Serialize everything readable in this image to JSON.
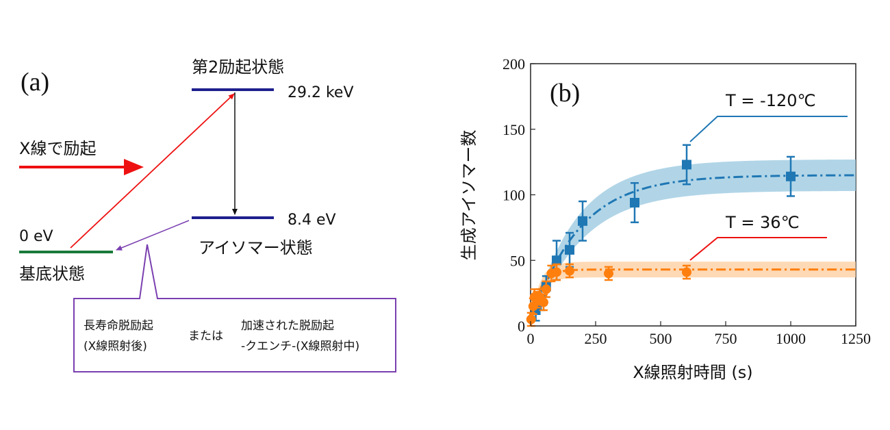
{
  "panel_a": {
    "label": "(a)",
    "second_excited_label": "第2励起状態",
    "second_excited_energy": "29.2 keV",
    "isomer_energy": "8.4 eV",
    "isomer_label": "アイソマー状態",
    "ground_energy": "0 eV",
    "ground_label": "基底状態",
    "xray_excitation_label": "X線で励起",
    "callout": {
      "left_line1": "長寿命脱励起",
      "left_line2": "(X線照射後)",
      "middle": "または",
      "right_line1": "加速された脱励起",
      "right_line2": "-クエンチ-(X線照射中)"
    },
    "colors": {
      "level_line": "#1f1f8f",
      "ground_line": "#1a7a3a",
      "xray_arrow": "#ee1111",
      "decay_arrow": "#7a3fb0",
      "callout_border": "#7a3fb0"
    }
  },
  "chart_data": {
    "type": "scatter",
    "panel_label": "(b)",
    "xlabel": "X線照射時間 (s)",
    "ylabel": "生成アイソマー数",
    "xlim": [
      0,
      1250
    ],
    "ylim": [
      0,
      200
    ],
    "x_ticks": [
      "0",
      "250",
      "500",
      "750",
      "1000",
      "1250"
    ],
    "y_ticks": [
      "0",
      "50",
      "100",
      "150",
      "200"
    ],
    "series": [
      {
        "name": "T = -120℃",
        "color": "#1f77b4",
        "band_color": "#9ecae1",
        "marker": "square",
        "points": [
          {
            "x": 20,
            "y": 12,
            "err": 8
          },
          {
            "x": 40,
            "y": 20,
            "err": 8
          },
          {
            "x": 60,
            "y": 30,
            "err": 8
          },
          {
            "x": 100,
            "y": 50,
            "err": 15
          },
          {
            "x": 150,
            "y": 58,
            "err": 13
          },
          {
            "x": 200,
            "y": 80,
            "err": 15
          },
          {
            "x": 400,
            "y": 94,
            "err": 15
          },
          {
            "x": 600,
            "y": 123,
            "err": 15
          },
          {
            "x": 1000,
            "y": 114,
            "err": 15
          }
        ],
        "fit": {
          "amplitude": 115,
          "tau": 180,
          "band": 12
        }
      },
      {
        "name": "T = 36℃",
        "color": "#ff7f0e",
        "band_color": "#fdd0a2",
        "marker": "circle",
        "points": [
          {
            "x": 2,
            "y": 5,
            "err": 5
          },
          {
            "x": 10,
            "y": 15,
            "err": 6
          },
          {
            "x": 15,
            "y": 22,
            "err": 6
          },
          {
            "x": 25,
            "y": 20,
            "err": 6
          },
          {
            "x": 35,
            "y": 22,
            "err": 6
          },
          {
            "x": 50,
            "y": 18,
            "err": 6
          },
          {
            "x": 60,
            "y": 28,
            "err": 6
          },
          {
            "x": 80,
            "y": 40,
            "err": 6
          },
          {
            "x": 100,
            "y": 41,
            "err": 6
          },
          {
            "x": 150,
            "y": 42,
            "err": 5
          },
          {
            "x": 300,
            "y": 40,
            "err": 5
          },
          {
            "x": 600,
            "y": 41,
            "err": 5
          }
        ],
        "fit": {
          "amplitude": 43,
          "tau": 35,
          "band": 6
        }
      }
    ]
  }
}
